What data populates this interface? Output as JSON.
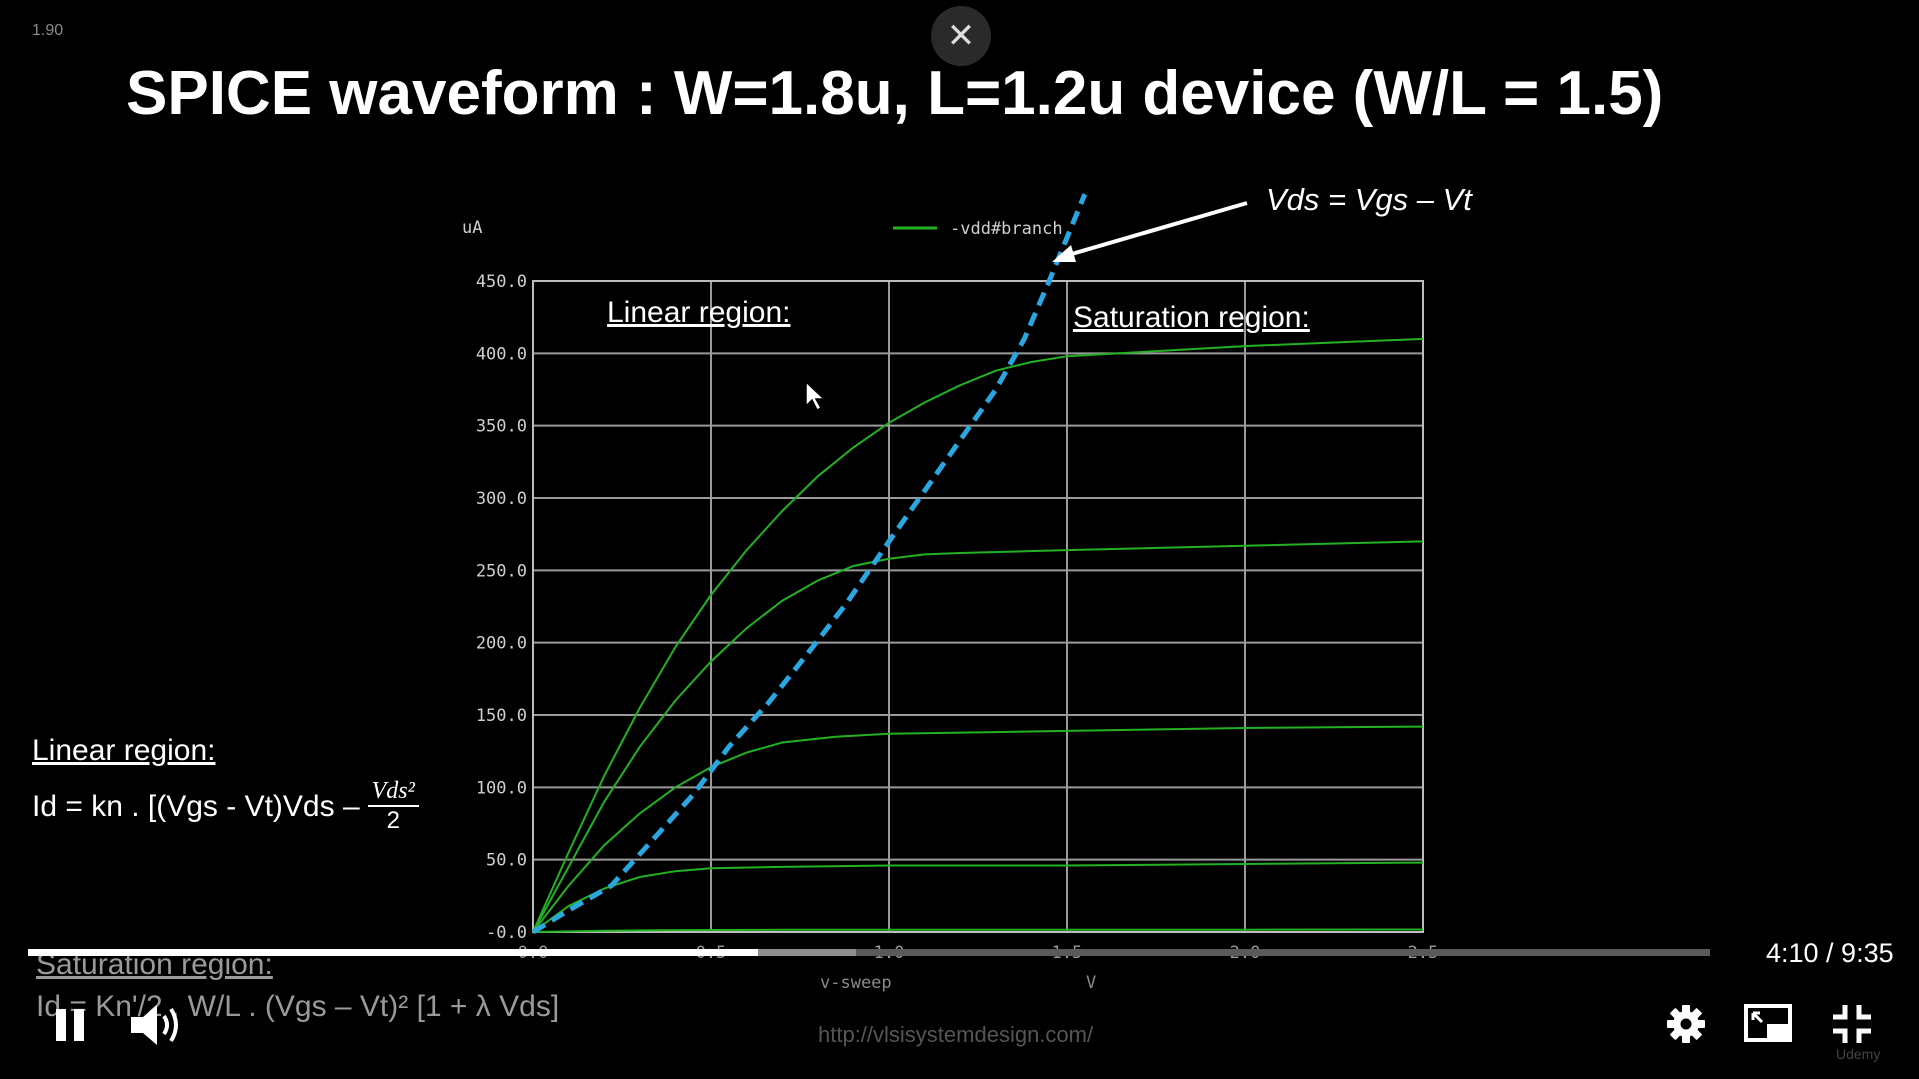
{
  "player": {
    "version": "1.90",
    "close_icon": "close-icon",
    "time": "4:10 / 9:35",
    "progress_fraction": 0.434,
    "buffer_fraction": 0.492,
    "watermark": "Udemy"
  },
  "slide": {
    "title": "SPICE waveform : W=1.8u, L=1.2u device (W/L = 1.5)",
    "annotation": "Vds = Vgs – Vt",
    "linear_label": "Linear region:",
    "saturation_label": "Saturation region:",
    "linear_eq": {
      "title": "Linear region:",
      "lhs": "Id = kn . [(Vgs - Vt)Vds –",
      "frac_num": "Vds²",
      "frac_den": "2"
    },
    "saturation_eq": {
      "title": "Saturation region:",
      "text": "Id = Kn'/2 . W/L . (Vgs – Vt)² [1 + λ Vds]"
    },
    "url": "http://vlsisystemdesign.com/"
  },
  "chart_data": {
    "type": "line",
    "yunit": "uA",
    "xlabel": "v-sweep",
    "xunit": "V",
    "legend": "-vdd#branch",
    "xlim": [
      0,
      2.5
    ],
    "ylim": [
      0,
      450
    ],
    "xticks": [
      "0.0",
      "0.5",
      "1.0",
      "1.5",
      "2.0",
      "2.5"
    ],
    "yticks": [
      "-0.0",
      "50.0",
      "100.0",
      "150.0",
      "200.0",
      "250.0",
      "300.0",
      "350.0",
      "400.0",
      "450.0"
    ],
    "grid": true,
    "series_color": "#22b122",
    "boundary_color": "#2aa6e0",
    "series": [
      {
        "x": [
          0,
          0.1,
          0.2,
          0.3,
          0.4,
          0.5,
          0.7,
          1.0,
          1.5,
          2.0,
          2.5
        ],
        "y": [
          0,
          0.4,
          0.8,
          1.1,
          1.3,
          1.4,
          1.5,
          1.5,
          1.6,
          1.6,
          1.7
        ]
      },
      {
        "x": [
          0,
          0.1,
          0.2,
          0.3,
          0.4,
          0.5,
          0.7,
          1.0,
          1.5,
          2.0,
          2.5
        ],
        "y": [
          0,
          18,
          30,
          38,
          42,
          44,
          45,
          46,
          46,
          47,
          48
        ]
      },
      {
        "x": [
          0,
          0.1,
          0.2,
          0.3,
          0.4,
          0.5,
          0.6,
          0.7,
          0.85,
          1.0,
          1.5,
          2.0,
          2.5
        ],
        "y": [
          0,
          32,
          60,
          82,
          100,
          114,
          124,
          131,
          135,
          137,
          139,
          141,
          142
        ]
      },
      {
        "x": [
          0,
          0.1,
          0.2,
          0.3,
          0.4,
          0.5,
          0.6,
          0.7,
          0.8,
          0.9,
          1.0,
          1.1,
          1.2,
          1.5,
          2.0,
          2.5
        ],
        "y": [
          0,
          45,
          90,
          128,
          160,
          187,
          210,
          229,
          243,
          253,
          258,
          261,
          262,
          264,
          267,
          270
        ]
      },
      {
        "x": [
          0,
          0.1,
          0.2,
          0.3,
          0.4,
          0.5,
          0.6,
          0.7,
          0.8,
          0.9,
          1.0,
          1.1,
          1.2,
          1.3,
          1.4,
          1.5,
          2.0,
          2.5
        ],
        "y": [
          0,
          55,
          108,
          155,
          197,
          233,
          264,
          291,
          315,
          335,
          352,
          366,
          378,
          388,
          394,
          398,
          405,
          410
        ]
      }
    ],
    "boundary": {
      "name": "Vds = Vgs – Vt",
      "x": [
        0,
        0.1,
        0.22,
        0.33,
        0.45,
        0.55,
        0.66,
        0.77,
        0.88,
        1.0,
        1.1,
        1.2,
        1.3,
        1.38,
        1.45,
        1.55
      ],
      "y": [
        0,
        15,
        32,
        62,
        95,
        128,
        158,
        192,
        227,
        270,
        305,
        340,
        375,
        410,
        450,
        510
      ]
    }
  }
}
